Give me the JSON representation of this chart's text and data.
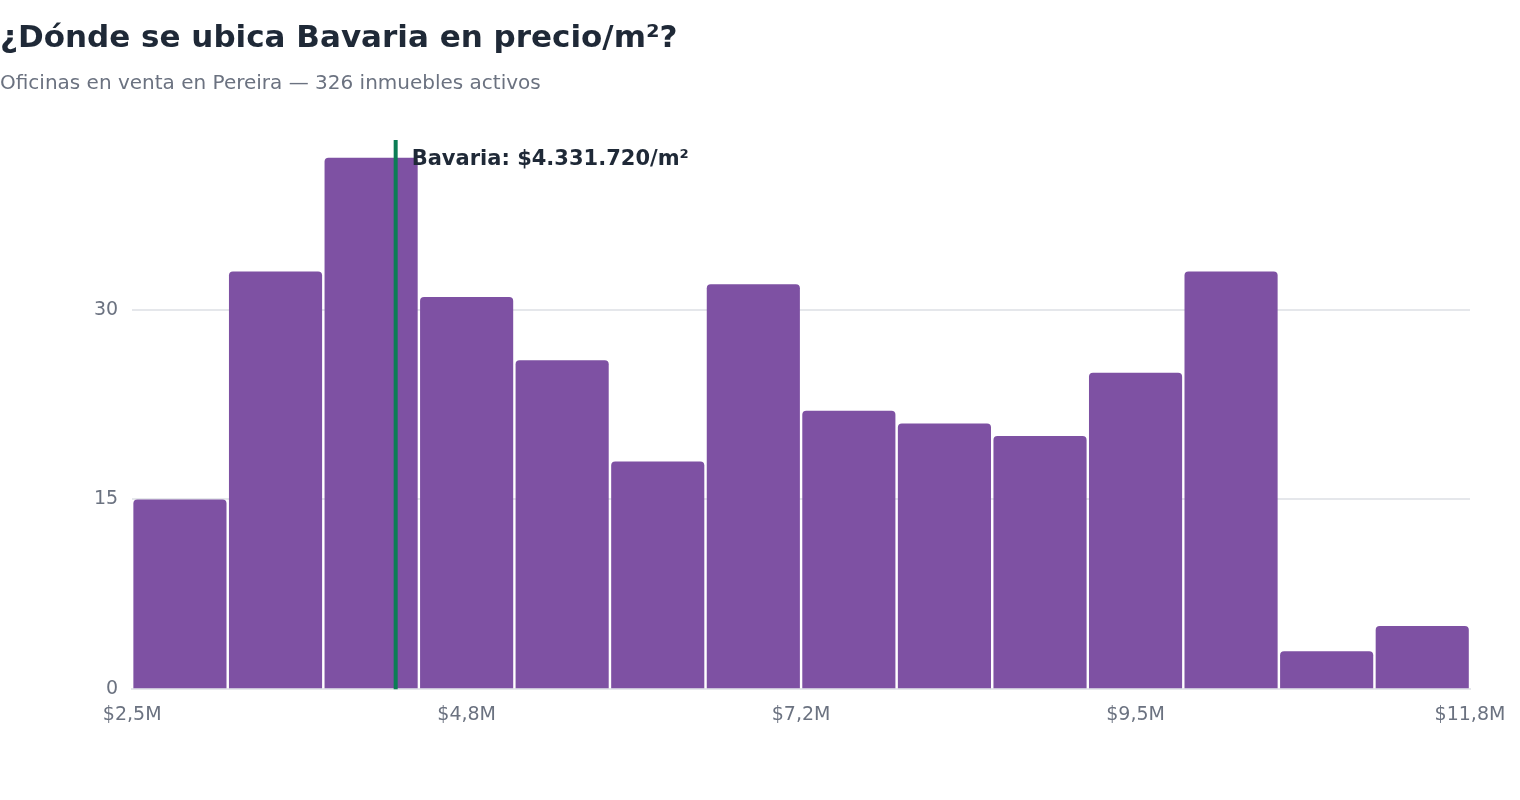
{
  "chart_data": {
    "type": "histogram",
    "title": "¿Dónde se ubica Bavaria en precio/m²?",
    "subtitle": "Oficinas en venta en Pereira — 326 inmuebles activos",
    "bins": [
      2.5,
      3.164,
      3.829,
      4.493,
      5.157,
      5.821,
      6.486,
      7.15,
      7.814,
      8.479,
      9.143,
      9.807,
      10.471,
      11.136,
      11.8
    ],
    "values": [
      15,
      33,
      42,
      31,
      26,
      18,
      32,
      22,
      21,
      20,
      25,
      33,
      3,
      5
    ],
    "color": "#7e51a3",
    "xlim": [
      2.5,
      11.8
    ],
    "xticks": [
      {
        "value": 2.5,
        "label": "$2,5M"
      },
      {
        "value": 4.825,
        "label": "$4,8M"
      },
      {
        "value": 7.15,
        "label": "$7,2M"
      },
      {
        "value": 9.475,
        "label": "$9,5M"
      },
      {
        "value": 11.8,
        "label": "$11,8M"
      }
    ],
    "ylim": [
      0,
      43.4
    ],
    "yticks": [
      0,
      15,
      30
    ],
    "grid": "y",
    "legend": false,
    "ref_lines": [
      {
        "axis": "x",
        "value": 4.33172,
        "label": "Bavaria: $4.331.720/m²",
        "color": "#0b7d55"
      }
    ]
  }
}
